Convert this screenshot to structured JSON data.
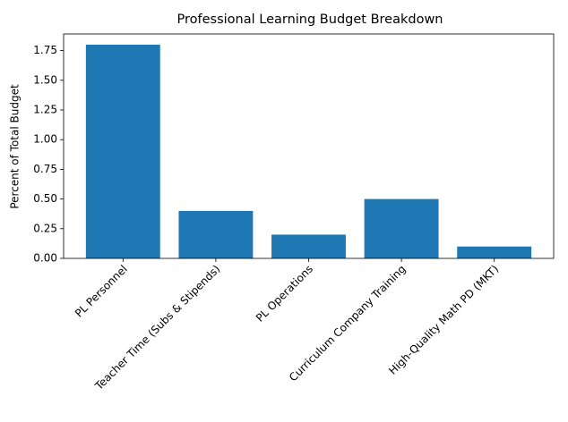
{
  "chart_data": {
    "type": "bar",
    "title": "Professional Learning Budget Breakdown",
    "y_label": "Percent of Total Budget",
    "categories": [
      "PL Personnel",
      "Teacher Time (Subs & Stipends)",
      "PL Operations",
      "Curriculum Company Training",
      "High-Quality Math PD (MKT)"
    ],
    "values": [
      1.8,
      0.4,
      0.2,
      0.5,
      0.1
    ],
    "color": "#1f77b4",
    "ylim": [
      0,
      1.89
    ],
    "yticks": [
      {
        "value": 0,
        "label": "0.00"
      },
      0.25,
      {
        "value": 0.5,
        "label": "0.50"
      },
      0.75,
      {
        "value": 1,
        "label": "1.00"
      },
      1.25,
      {
        "value": 1.5,
        "label": "1.50"
      },
      1.75
    ],
    "grid": false
  }
}
